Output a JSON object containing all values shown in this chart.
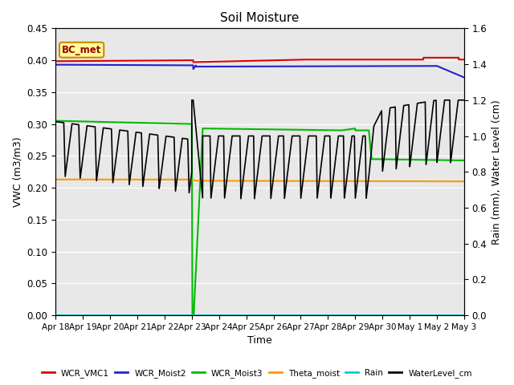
{
  "title": "Soil Moisture",
  "xlabel": "Time",
  "ylabel_left": "VWC (m3/m3)",
  "ylabel_right": "Rain (mm), Water Level (cm)",
  "annotation": "BC_met",
  "xlim": [
    0,
    15
  ],
  "ylim_left": [
    0.0,
    0.45
  ],
  "ylim_right": [
    0.0,
    1.6
  ],
  "x_tick_labels": [
    "Apr 18",
    "Apr 19",
    "Apr 20",
    "Apr 21",
    "Apr 22",
    "Apr 23",
    "Apr 24",
    "Apr 25",
    "Apr 26",
    "Apr 27",
    "Apr 28",
    "Apr 29",
    "Apr 30",
    "May 1",
    "May 2",
    "May 3"
  ],
  "yticks_left": [
    0.0,
    0.05,
    0.1,
    0.15,
    0.2,
    0.25,
    0.3,
    0.35,
    0.4,
    0.45
  ],
  "yticks_right": [
    0.0,
    0.2,
    0.4,
    0.6,
    0.8,
    1.0,
    1.2,
    1.4,
    1.6
  ],
  "background_color": "#e8e8e8",
  "grid_color": "#ffffff",
  "colors": {
    "WCR_VMC1": "#dd0000",
    "WCR_Moist2": "#2222cc",
    "WCR_Moist3": "#00bb00",
    "Theta_moist": "#ff9900",
    "Rain": "#00cccc",
    "WaterLevel_cm": "#000000"
  },
  "legend_labels": [
    "WCR_VMC1",
    "WCR_Moist2",
    "WCR_Moist3",
    "Theta_moist",
    "Rain",
    "WaterLevel_cm"
  ]
}
